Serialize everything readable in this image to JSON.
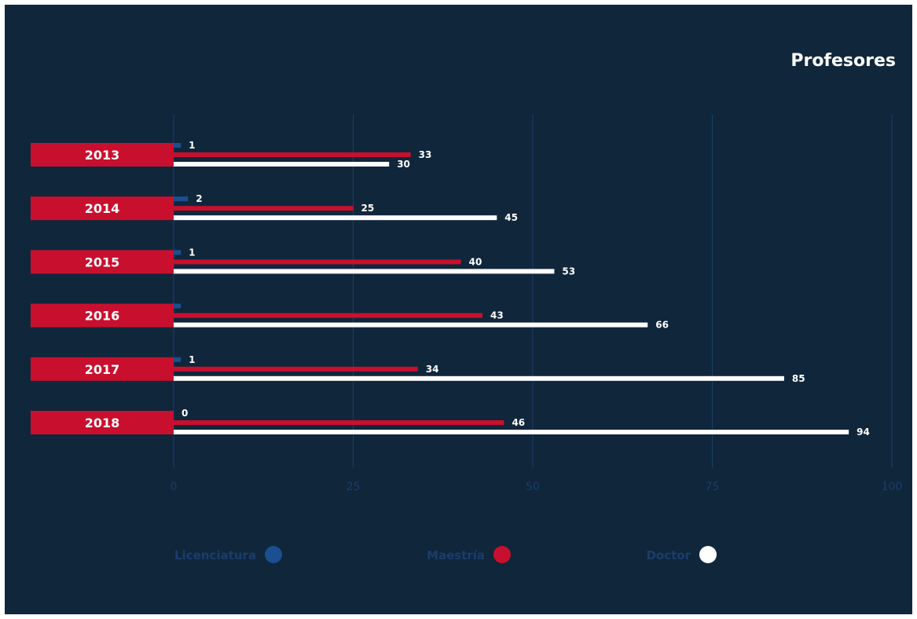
{
  "chart_data": {
    "type": "bar",
    "orientation": "horizontal",
    "title": "Profesores",
    "categories": [
      "2013",
      "2014",
      "2015",
      "2016",
      "2017",
      "2018"
    ],
    "series": [
      {
        "name": "Licenciatura",
        "color": "#1b4f8f",
        "values": [
          1,
          2,
          1,
          1,
          1,
          0
        ],
        "labels": [
          "1",
          "2",
          "1",
          "",
          "1",
          "0"
        ]
      },
      {
        "name": "Maestría",
        "color": "#c8102e",
        "values": [
          33,
          25,
          40,
          43,
          34,
          46
        ],
        "labels": [
          "33",
          "25",
          "40",
          "43",
          "34",
          "46"
        ]
      },
      {
        "name": "Doctor",
        "color": "#ffffff",
        "values": [
          30,
          45,
          53,
          66,
          85,
          94
        ],
        "labels": [
          "30",
          "45",
          "53",
          "66",
          "85",
          "94"
        ]
      }
    ],
    "xlim": [
      0,
      100
    ],
    "xticks": [
      "0",
      "25",
      "50",
      "75",
      "100"
    ],
    "grid": true,
    "legend": "bottom"
  },
  "colors": {
    "background": "#10263b",
    "grid": "#1a3d6d",
    "category_label_bg": "#c8102e"
  }
}
